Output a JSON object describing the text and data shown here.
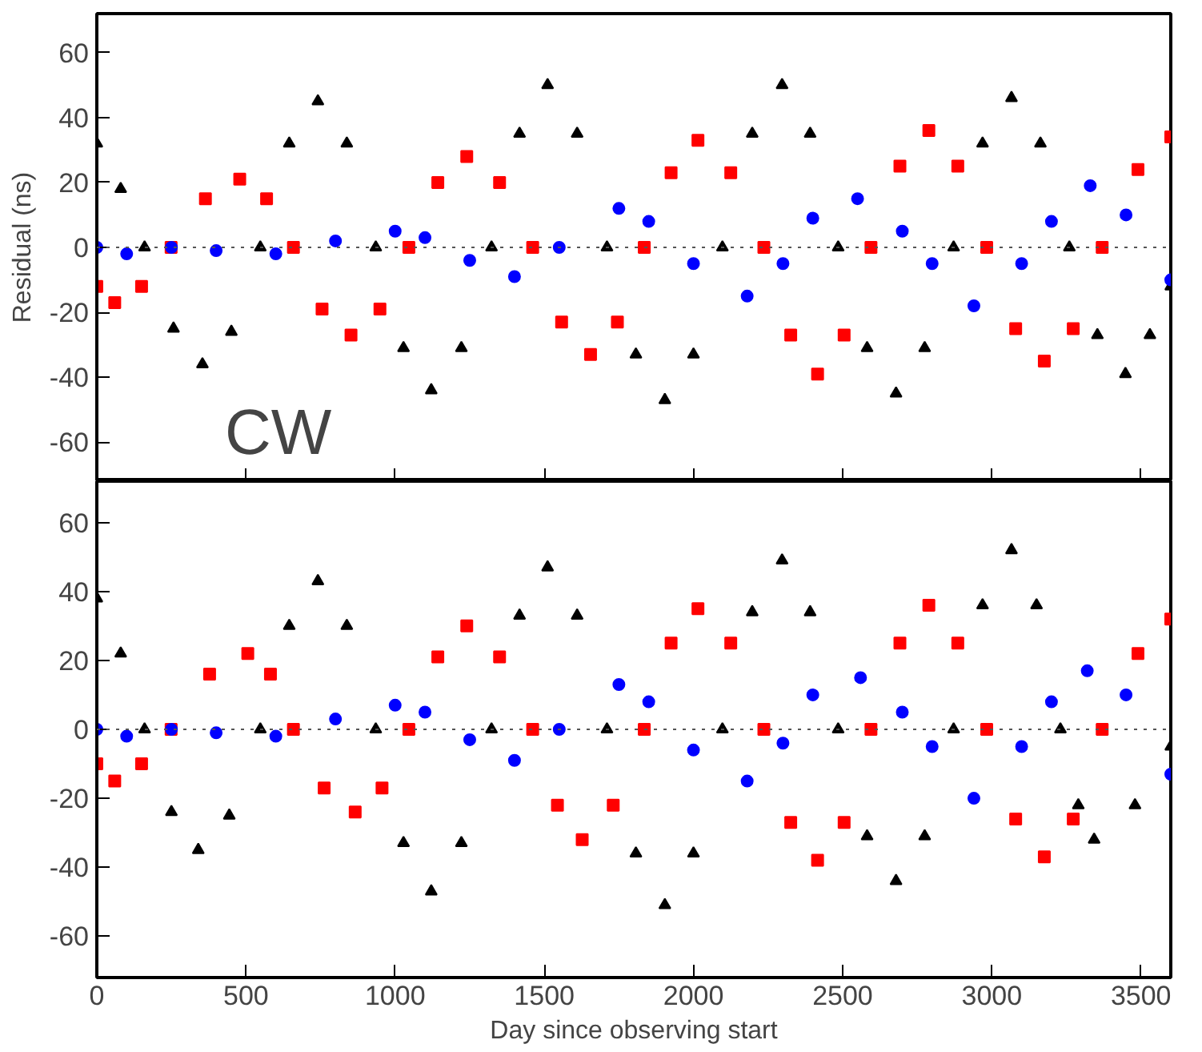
{
  "chart_data": [
    {
      "type": "scatter",
      "ylabel": "Residual (ns)",
      "annotations": [
        "CW"
      ],
      "xlim": [
        0,
        3600
      ],
      "ylim": [
        -72,
        72
      ],
      "xticks": [
        0,
        500,
        1000,
        1500,
        2000,
        2500,
        3000,
        3500
      ],
      "yticks": [
        -60,
        -40,
        -20,
        0,
        20,
        40,
        60
      ],
      "tick_labels": "y",
      "grid": false,
      "ref_lines": [
        {
          "axis": "y",
          "value": 0,
          "color": "#555555",
          "line_style": "dotted"
        }
      ],
      "series": [
        {
          "color": "#000000",
          "marker": "triangle",
          "x": [
            0,
            80,
            160,
            257,
            354,
            451,
            548,
            645,
            741,
            838,
            935,
            1028,
            1121,
            1222,
            1323,
            1417,
            1511,
            1610,
            1710,
            1807,
            1904,
            2000,
            2097,
            2197,
            2297,
            2391,
            2485,
            2582,
            2679,
            2775,
            2872,
            2969,
            3066,
            3163,
            3260,
            3354,
            3448,
            3530,
            3600
          ],
          "values": [
            32,
            18,
            0,
            -25,
            -36,
            -26,
            0,
            32,
            45,
            32,
            0,
            -31,
            -44,
            -31,
            0,
            35,
            50,
            35,
            0,
            -33,
            -47,
            -33,
            0,
            35,
            50,
            35,
            0,
            -31,
            -45,
            -31,
            0,
            32,
            46,
            32,
            0,
            -27,
            -39,
            -27,
            -12
          ]
        },
        {
          "color": "#ff0000",
          "marker": "square",
          "x": [
            0,
            60,
            150,
            249,
            364,
            479,
            569,
            659,
            755,
            852,
            949,
            1046,
            1143,
            1240,
            1350,
            1461,
            1558,
            1655,
            1745,
            1835,
            1925,
            2015,
            2125,
            2236,
            2326,
            2416,
            2505,
            2595,
            2692,
            2789,
            2886,
            2983,
            3080,
            3176,
            3273,
            3370,
            3490,
            3600
          ],
          "values": [
            -12,
            -17,
            -12,
            0,
            15,
            21,
            15,
            0,
            -19,
            -27,
            -19,
            0,
            20,
            28,
            20,
            0,
            -23,
            -33,
            -23,
            0,
            23,
            33,
            23,
            0,
            -27,
            -39,
            -27,
            0,
            25,
            36,
            25,
            0,
            -25,
            -35,
            -25,
            0,
            24,
            34
          ]
        },
        {
          "color": "#0000ff",
          "marker": "circle",
          "x": [
            0,
            100,
            250,
            400,
            600,
            800,
            1000,
            1100,
            1250,
            1400,
            1550,
            1750,
            1850,
            2000,
            2180,
            2300,
            2400,
            2550,
            2700,
            2800,
            2940,
            3100,
            3200,
            3330,
            3450,
            3600
          ],
          "values": [
            0,
            -2,
            0,
            -1,
            -2,
            2,
            5,
            3,
            -4,
            -9,
            0,
            12,
            8,
            -5,
            -15,
            -5,
            9,
            15,
            5,
            -5,
            -18,
            -5,
            8,
            19,
            10,
            -10
          ]
        }
      ]
    },
    {
      "type": "scatter",
      "xlabel": "Day since observing start",
      "xlim": [
        0,
        3600
      ],
      "ylim": [
        -72,
        72
      ],
      "xticks": [
        0,
        500,
        1000,
        1500,
        2000,
        2500,
        3000,
        3500
      ],
      "yticks": [
        -60,
        -40,
        -20,
        0,
        20,
        40,
        60
      ],
      "grid": false,
      "ref_lines": [
        {
          "axis": "y",
          "value": 0,
          "color": "#555555",
          "line_style": "dotted"
        }
      ],
      "series": [
        {
          "color": "#000000",
          "marker": "triangle",
          "x": [
            0,
            80,
            160,
            250,
            340,
            444,
            548,
            645,
            741,
            838,
            935,
            1028,
            1121,
            1222,
            1323,
            1417,
            1511,
            1610,
            1710,
            1807,
            1904,
            2000,
            2097,
            2197,
            2297,
            2391,
            2485,
            2582,
            2679,
            2775,
            2872,
            2969,
            3066,
            3150,
            3230,
            3290,
            3343,
            3480,
            3600
          ],
          "values": [
            38,
            22,
            0,
            -24,
            -35,
            -25,
            0,
            30,
            43,
            30,
            0,
            -33,
            -47,
            -33,
            0,
            33,
            47,
            33,
            0,
            -36,
            -51,
            -36,
            0,
            34,
            49,
            34,
            0,
            -31,
            -44,
            -31,
            0,
            36,
            52,
            36,
            0,
            -22,
            -32,
            -22,
            -5
          ]
        },
        {
          "color": "#ff0000",
          "marker": "square",
          "x": [
            0,
            60,
            150,
            249,
            378,
            506,
            582,
            659,
            762,
            866,
            956,
            1046,
            1143,
            1240,
            1350,
            1461,
            1544,
            1627,
            1731,
            1835,
            1925,
            2015,
            2125,
            2236,
            2326,
            2416,
            2505,
            2595,
            2692,
            2789,
            2886,
            2983,
            3080,
            3176,
            3273,
            3370,
            3490,
            3600
          ],
          "values": [
            -10,
            -15,
            -10,
            0,
            16,
            22,
            16,
            0,
            -17,
            -24,
            -17,
            0,
            21,
            30,
            21,
            0,
            -22,
            -32,
            -22,
            0,
            25,
            35,
            25,
            0,
            -27,
            -38,
            -27,
            0,
            25,
            36,
            25,
            0,
            -26,
            -37,
            -26,
            0,
            22,
            32
          ]
        },
        {
          "color": "#0000ff",
          "marker": "circle",
          "x": [
            0,
            100,
            250,
            400,
            600,
            800,
            1000,
            1100,
            1250,
            1400,
            1550,
            1750,
            1850,
            2000,
            2180,
            2300,
            2400,
            2560,
            2700,
            2800,
            2940,
            3100,
            3200,
            3320,
            3450,
            3600
          ],
          "values": [
            0,
            -2,
            0,
            -1,
            -2,
            3,
            7,
            5,
            -3,
            -9,
            0,
            13,
            8,
            -6,
            -15,
            -4,
            10,
            15,
            5,
            -5,
            -20,
            -5,
            8,
            17,
            10,
            -13
          ]
        }
      ]
    }
  ]
}
